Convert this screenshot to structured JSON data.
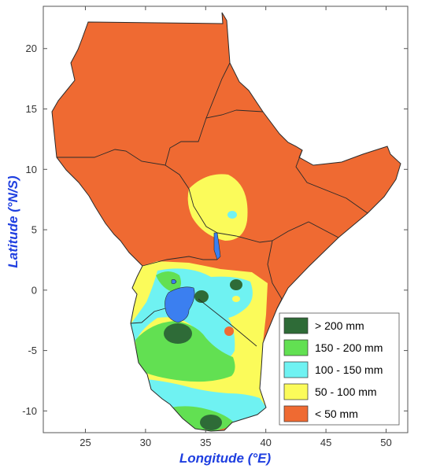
{
  "map": {
    "xlabel": "Longitude (°E)",
    "ylabel": "Latitude (°N/S)",
    "x_ticks": [
      "25",
      "30",
      "35",
      "40",
      "45",
      "50"
    ],
    "y_ticks": [
      "20",
      "15",
      "10",
      "5",
      "0",
      "-5",
      "-10"
    ],
    "xlim": [
      21.5,
      51.8
    ],
    "ylim": [
      -11.8,
      23.5
    ],
    "colors": {
      "very_low": "#ef6a32",
      "low": "#fbfb5a",
      "medium": "#6ff2f2",
      "high": "#62e052",
      "very_high": "#2e6b37",
      "lake": "#3b7ff0",
      "border": "#2a2a2a"
    }
  },
  "legend": {
    "items": [
      {
        "label": "> 200 mm",
        "color": "#2e6b37"
      },
      {
        "label": "150 - 200 mm",
        "color": "#62e052"
      },
      {
        "label": "100 - 150 mm",
        "color": "#6ff2f2"
      },
      {
        "label": "50 - 100 mm",
        "color": "#fbfb5a"
      },
      {
        "label": "< 50 mm",
        "color": "#ef6a32"
      }
    ]
  }
}
